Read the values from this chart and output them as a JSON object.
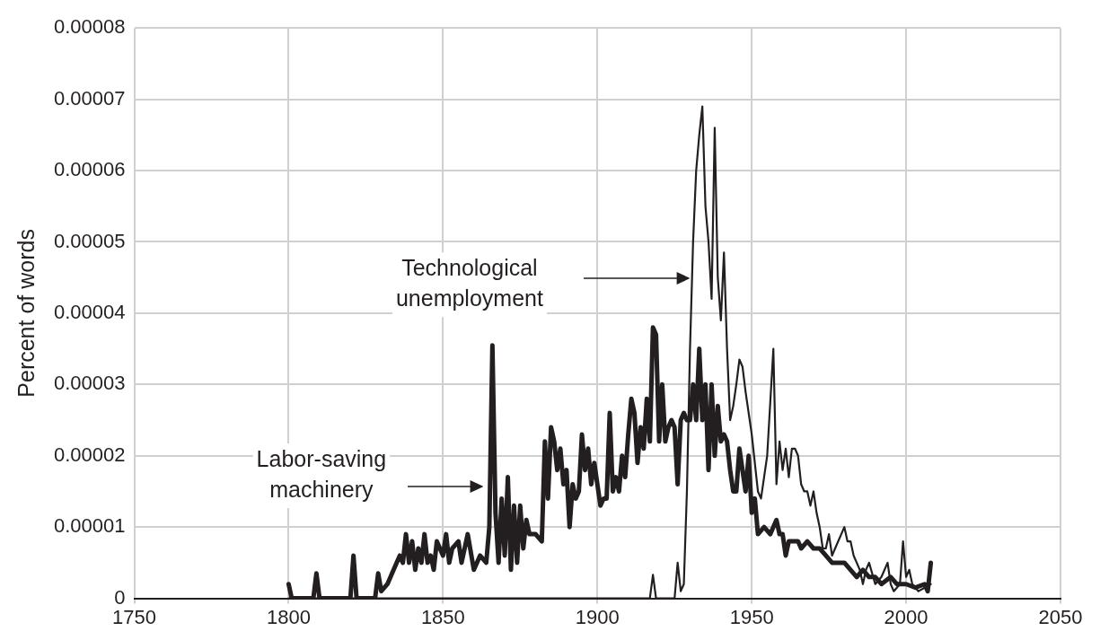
{
  "chart_data": {
    "type": "line",
    "ylabel": "Percent of words",
    "xlim": [
      1750,
      2050
    ],
    "xticks": [
      1750,
      1800,
      1850,
      1900,
      1950,
      2000,
      2050
    ],
    "ylim": [
      0,
      8e-05
    ],
    "yticks": [
      0,
      {
        "value": 1e-05,
        "label": "0.00001"
      },
      {
        "value": 2e-05,
        "label": "0.00002"
      },
      {
        "value": 3e-05,
        "label": "0.00003"
      },
      {
        "value": 4e-05,
        "label": "0.00004"
      },
      {
        "value": 5e-05,
        "label": "0.00005"
      },
      {
        "value": 6e-05,
        "label": "0.00006"
      },
      {
        "value": 7e-05,
        "label": "0.00007"
      },
      {
        "value": 8e-05,
        "label": "0.00008"
      }
    ],
    "grid": true,
    "legend": false,
    "marker": "none",
    "line_style": "solid",
    "series": [
      {
        "color": "#231f20",
        "x": [
          1800,
          1801,
          1808,
          1809,
          1810,
          1820,
          1821,
          1822,
          1828,
          1829,
          1830,
          1832,
          1834,
          1836,
          1837,
          1838,
          1839,
          1840,
          1841,
          1842,
          1843,
          1844,
          1845,
          1846,
          1847,
          1848,
          1850,
          1851,
          1852,
          1853,
          1855,
          1856,
          1858,
          1860,
          1862,
          1864,
          1865,
          1866,
          1867,
          1868,
          1869,
          1870,
          1871,
          1872,
          1873,
          1874,
          1875,
          1876,
          1877,
          1878,
          1880,
          1882,
          1883,
          1884,
          1885,
          1886,
          1887,
          1888,
          1889,
          1890,
          1891,
          1892,
          1893,
          1894,
          1895,
          1896,
          1897,
          1898,
          1899,
          1900,
          1901,
          1902,
          1903,
          1904,
          1905,
          1906,
          1907,
          1908,
          1909,
          1910,
          1911,
          1912,
          1913,
          1914,
          1915,
          1916,
          1917,
          1918,
          1919,
          1920,
          1921,
          1922,
          1923,
          1924,
          1925,
          1926,
          1927,
          1928,
          1929,
          1930,
          1931,
          1932,
          1933,
          1934,
          1935,
          1936,
          1937,
          1938,
          1939,
          1940,
          1941,
          1942,
          1943,
          1944,
          1945,
          1946,
          1947,
          1948,
          1949,
          1950,
          1951,
          1952,
          1954,
          1956,
          1958,
          1959,
          1960,
          1961,
          1962,
          1965,
          1966,
          1968,
          1970,
          1972,
          1974,
          1976,
          1978,
          1980,
          1982,
          1984,
          1986,
          1988,
          1990,
          1992,
          1995,
          1997,
          2000,
          2003,
          2006,
          2007,
          2008
        ],
        "values": [
          2e-06,
          0,
          0,
          3.5e-06,
          0,
          0,
          6e-06,
          0,
          0,
          3.5e-06,
          1e-06,
          2e-06,
          4e-06,
          6e-06,
          5e-06,
          9e-06,
          5e-06,
          8e-06,
          4e-06,
          7e-06,
          5e-06,
          9e-06,
          5e-06,
          6e-06,
          4e-06,
          8e-06,
          6e-06,
          9e-06,
          5e-06,
          7e-06,
          8e-06,
          5e-06,
          9e-06,
          4e-06,
          6e-06,
          5e-06,
          1e-05,
          3.55e-05,
          1.2e-05,
          5e-06,
          1.4e-05,
          6e-06,
          1.7e-05,
          4e-06,
          1.3e-05,
          5e-06,
          1.3e-05,
          7e-06,
          1.1e-05,
          9e-06,
          9e-06,
          8e-06,
          2.2e-05,
          1.4e-05,
          2.4e-05,
          2.2e-05,
          1.8e-05,
          2.1e-05,
          1.6e-05,
          1.8e-05,
          1e-05,
          1.6e-05,
          1.4e-05,
          1.5e-05,
          2.3e-05,
          1.8e-05,
          2.1e-05,
          1.6e-05,
          1.9e-05,
          1.6e-05,
          1.3e-05,
          1.4e-05,
          1.4e-05,
          2.6e-05,
          1.5e-05,
          1.7e-05,
          1.5e-05,
          2e-05,
          1.7e-05,
          2.3e-05,
          2.8e-05,
          2.6e-05,
          1.9e-05,
          2.4e-05,
          2.1e-05,
          2.8e-05,
          2.2e-05,
          3.8e-05,
          3.7e-05,
          2.2e-05,
          3e-05,
          2.2e-05,
          2.4e-05,
          2.5e-05,
          2.4e-05,
          1.6e-05,
          2.5e-05,
          2.6e-05,
          2.5e-05,
          2.5e-05,
          3e-05,
          2.5e-05,
          3.5e-05,
          2.5e-05,
          3e-05,
          1.8e-05,
          3e-05,
          2e-05,
          2.7e-05,
          2.2e-05,
          2.3e-05,
          2.2e-05,
          1.8e-05,
          1.5e-05,
          1.5e-05,
          2.1e-05,
          1.8e-05,
          1.5e-05,
          2e-05,
          1.2e-05,
          1.4e-05,
          9e-06,
          1e-05,
          9e-06,
          1.1e-05,
          9e-06,
          9e-06,
          6e-06,
          8e-06,
          8e-06,
          7e-06,
          8e-06,
          7e-06,
          7e-06,
          6e-06,
          5e-06,
          5e-06,
          5e-06,
          4e-06,
          3e-06,
          4e-06,
          3e-06,
          3e-06,
          2e-06,
          3e-06,
          2e-06,
          2e-06,
          1.5e-06,
          2e-06,
          1e-06,
          5e-06
        ]
      },
      {
        "color": "#231f20",
        "x": [
          1800,
          1915,
          1917,
          1918,
          1919,
          1925,
          1926,
          1927,
          1928,
          1929,
          1930,
          1931,
          1932,
          1933,
          1934,
          1935,
          1936,
          1937,
          1938,
          1939,
          1940,
          1941,
          1942,
          1943,
          1944,
          1945,
          1946,
          1947,
          1948,
          1950,
          1952,
          1953,
          1955,
          1957,
          1958,
          1959,
          1960,
          1961,
          1962,
          1963,
          1964,
          1965,
          1966,
          1967,
          1968,
          1969,
          1970,
          1971,
          1972,
          1973,
          1974,
          1975,
          1976,
          1977,
          1978,
          1979,
          1980,
          1981,
          1982,
          1983,
          1984,
          1985,
          1986,
          1987,
          1988,
          1990,
          1992,
          1994,
          1995,
          1996,
          1998,
          1999,
          2000,
          2001,
          2002,
          2004,
          2006,
          2008
        ],
        "values": [
          0,
          0,
          0,
          3.3e-06,
          0,
          0,
          5e-06,
          1e-06,
          2e-06,
          1.5e-05,
          3.5e-05,
          5e-05,
          6e-05,
          6.5e-05,
          6.9e-05,
          5.5e-05,
          5e-05,
          4.2e-05,
          6.6e-05,
          4.5e-05,
          3.9e-05,
          4.85e-05,
          3.5e-05,
          2.5e-05,
          2.7e-05,
          3e-05,
          3.35e-05,
          3.25e-05,
          2.9e-05,
          2.3e-05,
          1.5e-05,
          1.4e-05,
          2e-05,
          3.5e-05,
          1.6e-05,
          2.2e-05,
          1.8e-05,
          2.1e-05,
          1.7e-05,
          2.1e-05,
          2.1e-05,
          2e-05,
          1.6e-05,
          1.5e-05,
          1.5e-05,
          1.3e-05,
          1.5e-05,
          1.2e-05,
          1e-05,
          7e-06,
          7e-06,
          9e-06,
          6e-06,
          7e-06,
          8e-06,
          9e-06,
          1e-05,
          8e-06,
          8e-06,
          6e-06,
          5e-06,
          4e-06,
          2e-06,
          4e-06,
          5e-06,
          2e-06,
          3e-06,
          5e-06,
          2e-06,
          1e-06,
          2e-06,
          8e-06,
          3e-06,
          4e-06,
          2e-06,
          1e-06,
          1.5e-06,
          2e-06
        ]
      }
    ],
    "annotations": [
      "Technological unemployment",
      "Labor-saving machinery"
    ]
  }
}
